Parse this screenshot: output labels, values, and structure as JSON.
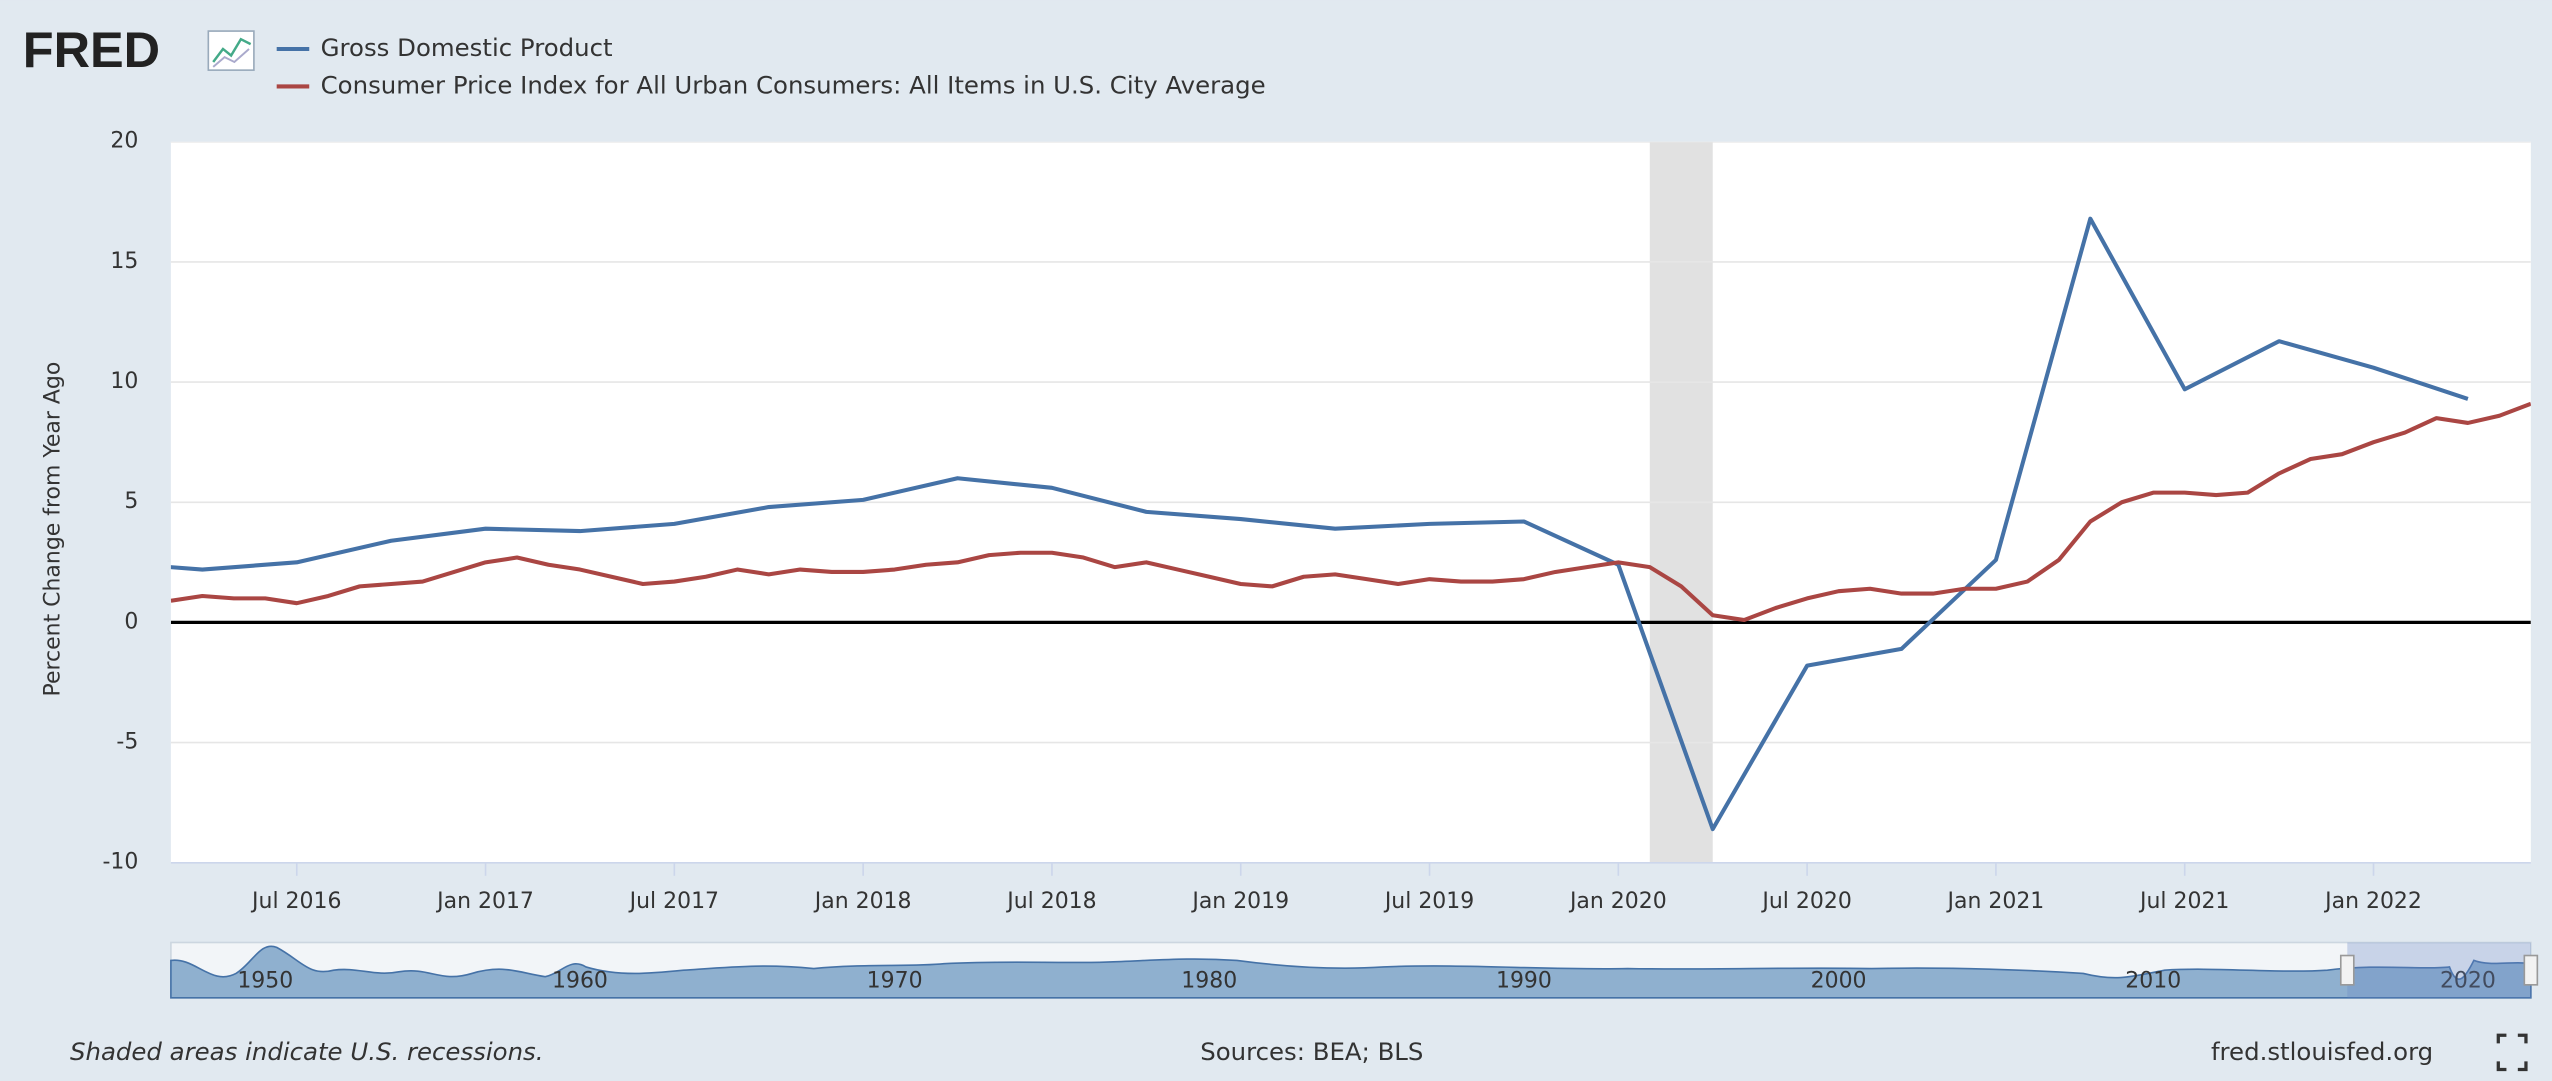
{
  "chart_data": {
    "type": "line",
    "logo": "FRED",
    "y_label": "Percent Change from Year Ago",
    "xlim": [
      "2016-03",
      "2022-06"
    ],
    "xticks": [
      {
        "value": "2016-07",
        "label": "Jul 2016"
      },
      {
        "value": "2017-01",
        "label": "Jan 2017"
      },
      {
        "value": "2017-07",
        "label": "Jul 2017"
      },
      {
        "value": "2018-01",
        "label": "Jan 2018"
      },
      {
        "value": "2018-07",
        "label": "Jul 2018"
      },
      {
        "value": "2019-01",
        "label": "Jan 2019"
      },
      {
        "value": "2019-07",
        "label": "Jul 2019"
      },
      {
        "value": "2020-01",
        "label": "Jan 2020"
      },
      {
        "value": "2020-07",
        "label": "Jul 2020"
      },
      {
        "value": "2021-01",
        "label": "Jan 2021"
      },
      {
        "value": "2021-07",
        "label": "Jul 2021"
      },
      {
        "value": "2022-01",
        "label": "Jan 2022"
      }
    ],
    "ylim": [
      -10,
      20
    ],
    "yticks": [
      -10,
      -5,
      0,
      5,
      10,
      15,
      20
    ],
    "grid": true,
    "recessions": [
      {
        "start": "2020-02",
        "end": "2020-04"
      }
    ],
    "series": [
      {
        "name": "Gross Domestic Product",
        "color": "#4572a7",
        "x": [
          "2016-01",
          "2016-04",
          "2016-07",
          "2016-10",
          "2017-01",
          "2017-04",
          "2017-07",
          "2017-10",
          "2018-01",
          "2018-04",
          "2018-07",
          "2018-10",
          "2019-01",
          "2019-04",
          "2019-07",
          "2019-10",
          "2020-01",
          "2020-04",
          "2020-07",
          "2020-10",
          "2021-01",
          "2021-04",
          "2021-07",
          "2021-10",
          "2022-01",
          "2022-04"
        ],
        "values": [
          2.5,
          2.2,
          2.5,
          3.4,
          3.9,
          3.8,
          4.1,
          4.8,
          5.1,
          6.0,
          5.6,
          4.6,
          4.3,
          3.9,
          4.1,
          4.2,
          2.4,
          -8.6,
          -1.8,
          -1.1,
          2.6,
          16.8,
          9.7,
          11.7,
          10.6,
          9.3
        ]
      },
      {
        "name": "Consumer Price Index for All Urban Consumers: All Items in U.S. City Average",
        "color": "#aa4643",
        "x": [
          "2016-03",
          "2016-04",
          "2016-05",
          "2016-06",
          "2016-07",
          "2016-08",
          "2016-09",
          "2016-10",
          "2016-11",
          "2016-12",
          "2017-01",
          "2017-02",
          "2017-03",
          "2017-04",
          "2017-05",
          "2017-06",
          "2017-07",
          "2017-08",
          "2017-09",
          "2017-10",
          "2017-11",
          "2017-12",
          "2018-01",
          "2018-02",
          "2018-03",
          "2018-04",
          "2018-05",
          "2018-06",
          "2018-07",
          "2018-08",
          "2018-09",
          "2018-10",
          "2018-11",
          "2018-12",
          "2019-01",
          "2019-02",
          "2019-03",
          "2019-04",
          "2019-05",
          "2019-06",
          "2019-07",
          "2019-08",
          "2019-09",
          "2019-10",
          "2019-11",
          "2019-12",
          "2020-01",
          "2020-02",
          "2020-03",
          "2020-04",
          "2020-05",
          "2020-06",
          "2020-07",
          "2020-08",
          "2020-09",
          "2020-10",
          "2020-11",
          "2020-12",
          "2021-01",
          "2021-02",
          "2021-03",
          "2021-04",
          "2021-05",
          "2021-06",
          "2021-07",
          "2021-08",
          "2021-09",
          "2021-10",
          "2021-11",
          "2021-12",
          "2022-01",
          "2022-02",
          "2022-03",
          "2022-04",
          "2022-05",
          "2022-06"
        ],
        "values": [
          0.9,
          1.1,
          1.0,
          1.0,
          0.8,
          1.1,
          1.5,
          1.6,
          1.7,
          2.1,
          2.5,
          2.7,
          2.4,
          2.2,
          1.9,
          1.6,
          1.7,
          1.9,
          2.2,
          2.0,
          2.2,
          2.1,
          2.1,
          2.2,
          2.4,
          2.5,
          2.8,
          2.9,
          2.9,
          2.7,
          2.3,
          2.5,
          2.2,
          1.9,
          1.6,
          1.5,
          1.9,
          2.0,
          1.8,
          1.6,
          1.8,
          1.7,
          1.7,
          1.8,
          2.1,
          2.3,
          2.5,
          2.3,
          1.5,
          0.3,
          0.1,
          0.6,
          1.0,
          1.3,
          1.4,
          1.2,
          1.2,
          1.4,
          1.4,
          1.7,
          2.6,
          4.2,
          5.0,
          5.4,
          5.4,
          5.3,
          5.4,
          6.2,
          6.8,
          7.0,
          7.5,
          7.9,
          8.5,
          8.3,
          8.6,
          9.1
        ]
      }
    ],
    "navigator": {
      "xlim": [
        1947,
        2022
      ],
      "ticks": [
        1950,
        1960,
        1970,
        1980,
        1990,
        2000,
        2010,
        2020
      ]
    },
    "note": "Shaded areas indicate U.S. recessions.",
    "sources": "Sources: BEA; BLS",
    "site": "fred.stlouisfed.org"
  }
}
